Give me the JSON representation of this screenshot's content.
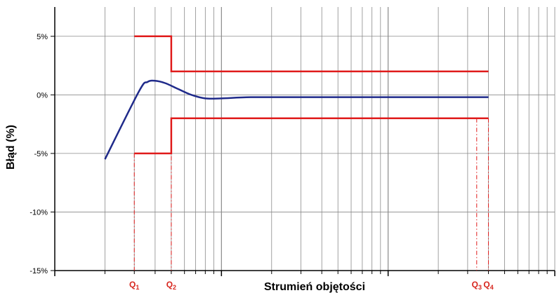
{
  "chart_data": {
    "type": "line",
    "xscale": "log",
    "xlabel": "Strumień objętości",
    "ylabel": "Błąd (%)",
    "yticks": [
      "5%",
      "0%",
      "-5%",
      "-10%",
      "-15%"
    ],
    "ytick_values": [
      5,
      0,
      -5,
      -10,
      -15
    ],
    "ylim": [
      -15,
      7.5
    ],
    "xlim": [
      1,
      1000
    ],
    "grid": true,
    "series": [
      {
        "role": "curve",
        "color": "#1f2a8a",
        "points": [
          [
            2.0,
            -5.5
          ],
          [
            3.2,
            0.3
          ],
          [
            3.6,
            1.1
          ],
          [
            4.0,
            1.2
          ],
          [
            4.6,
            1.0
          ],
          [
            5.5,
            0.5
          ],
          [
            6.6,
            0.0
          ],
          [
            8.0,
            -0.3
          ],
          [
            10.0,
            -0.3
          ],
          [
            15.0,
            -0.2
          ],
          [
            30.0,
            -0.2
          ],
          [
            100.0,
            -0.2
          ],
          [
            300.0,
            -0.2
          ],
          [
            400.0,
            -0.2
          ]
        ]
      },
      {
        "role": "upper-limit",
        "color": "#e01b1b",
        "points": [
          [
            3.0,
            5
          ],
          [
            5.0,
            5
          ],
          [
            5.0,
            2
          ],
          [
            400.0,
            2
          ]
        ]
      },
      {
        "role": "lower-limit",
        "color": "#e01b1b",
        "points": [
          [
            3.0,
            -5
          ],
          [
            5.0,
            -5
          ],
          [
            5.0,
            -2
          ],
          [
            400.0,
            -2
          ]
        ]
      }
    ],
    "q_markers": [
      {
        "sub": "1",
        "x": 3.0,
        "top_y": -5
      },
      {
        "sub": "2",
        "x": 5.0,
        "top_y": -2
      },
      {
        "sub": "3",
        "x": 340.0,
        "top_y": -2
      },
      {
        "sub": "4",
        "x": 400.0,
        "top_y": -2
      }
    ],
    "q_label": "Q",
    "colors": {
      "grid": "#8a8a8a",
      "axis": "#000000",
      "limit": "#e01b1b",
      "curve": "#1f2a8a",
      "qlabel": "#d7261e"
    }
  }
}
